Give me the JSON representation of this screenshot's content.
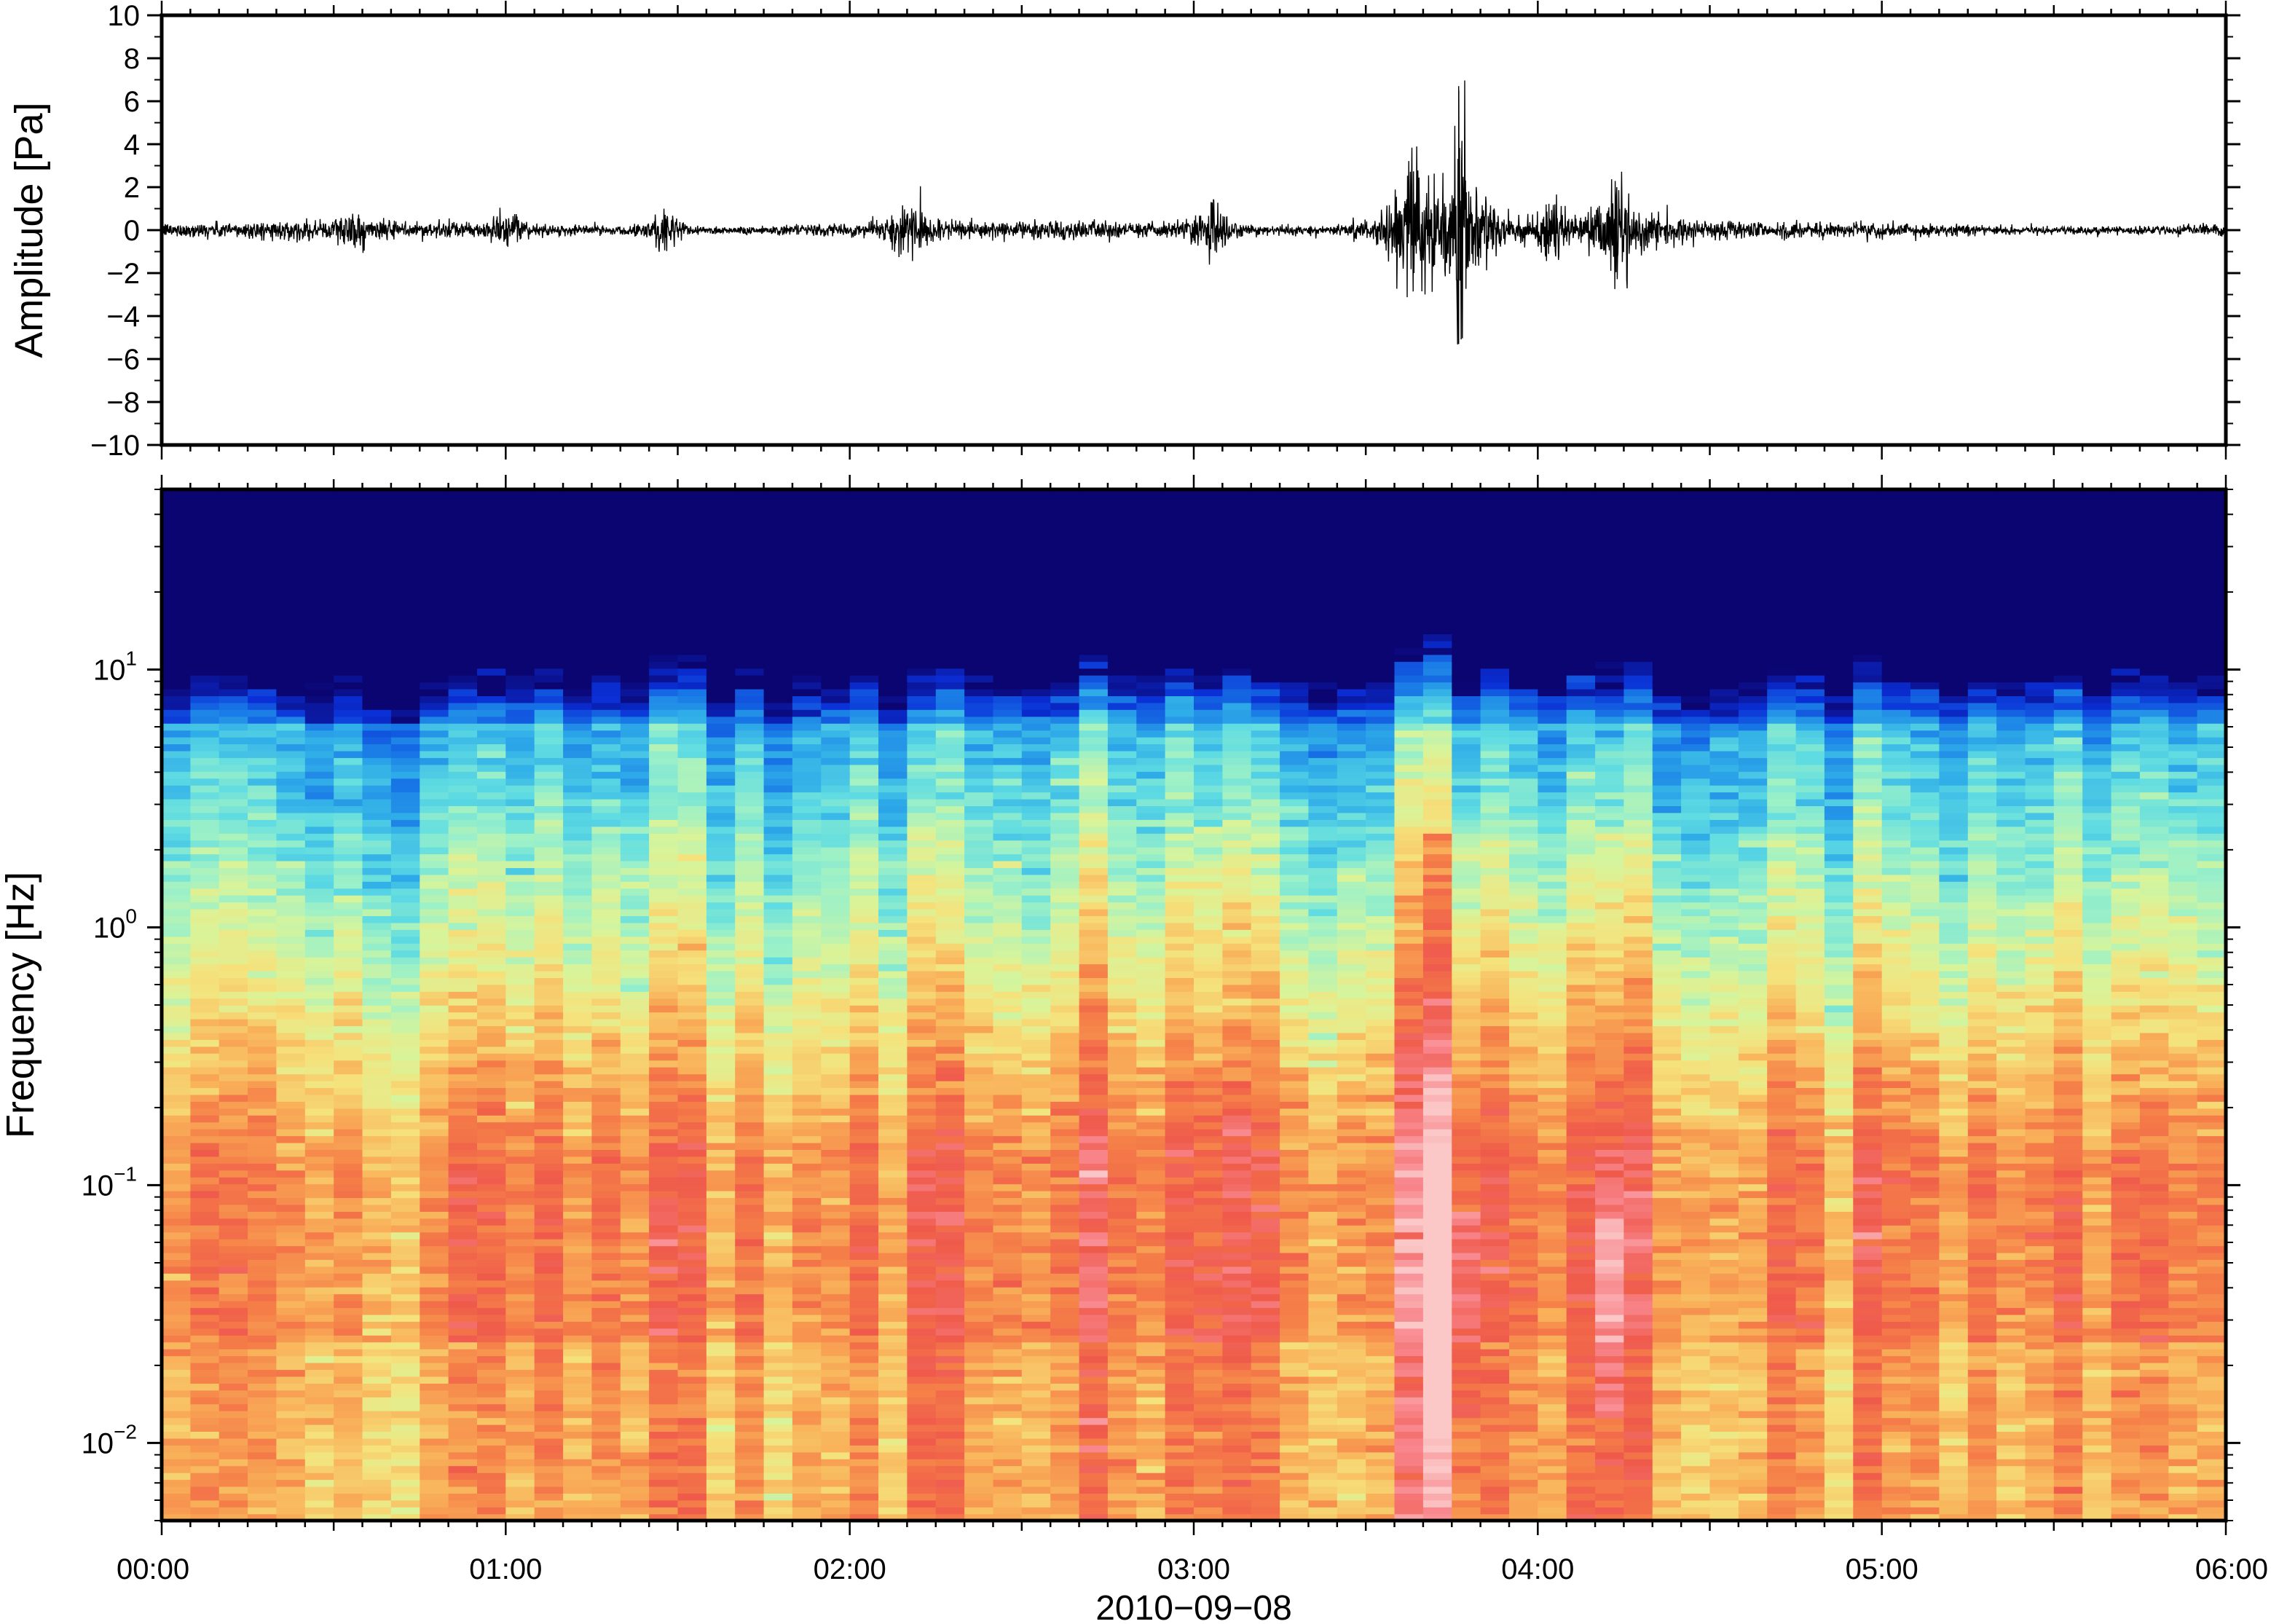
{
  "chart_data": [
    {
      "type": "line",
      "panel": "waveform",
      "title": "",
      "xlabel": "",
      "ylabel": "Amplitude [Pa]",
      "xlim_hours": [
        0,
        6
      ],
      "ylim": [
        -10,
        10
      ],
      "yticks": [
        10,
        8,
        6,
        4,
        2,
        0,
        -2,
        -4,
        -6,
        -8,
        -10
      ],
      "ytick_labels": [
        "10",
        "8",
        "6",
        "4",
        "2",
        "0",
        "−2",
        "−4",
        "−6",
        "−8",
        "−10"
      ],
      "background_noise_amplitude": 0.15,
      "bursts": [
        {
          "t": 0.55,
          "amp": 0.5
        },
        {
          "t": 1.0,
          "amp": 0.5
        },
        {
          "t": 1.46,
          "amp": 1.0
        },
        {
          "t": 2.17,
          "amp": 1.3
        },
        {
          "t": 3.05,
          "amp": 1.3
        },
        {
          "t": 3.64,
          "amp": 2.5
        },
        {
          "t": 3.77,
          "amp": 6.5
        },
        {
          "t": 4.05,
          "amp": 1.2
        },
        {
          "t": 4.23,
          "amp": 2.0
        }
      ],
      "series": [
        {
          "color": "#000000"
        }
      ]
    },
    {
      "type": "heatmap",
      "panel": "spectrogram",
      "title": "",
      "xlabel": "2010−09−08",
      "ylabel": "Frequency [Hz]",
      "xlim_hours": [
        0,
        6
      ],
      "ylim_hz": [
        0.005,
        50
      ],
      "yscale": "log",
      "yticks": [
        {
          "value": 10,
          "base": "10",
          "exp": "1"
        },
        {
          "value": 1,
          "base": "10",
          "exp": "0"
        },
        {
          "value": 0.1,
          "base": "10",
          "exp": "−1"
        },
        {
          "value": 0.01,
          "base": "10",
          "exp": "−2"
        }
      ],
      "xticks": [
        {
          "value": 0,
          "label": "00:00"
        },
        {
          "value": 1,
          "label": "01:00"
        },
        {
          "value": 2,
          "label": "02:00"
        },
        {
          "value": 3,
          "label": "03:00"
        },
        {
          "value": 4,
          "label": "04:00"
        },
        {
          "value": 5,
          "label": "05:00"
        },
        {
          "value": 6,
          "label": "06:00"
        }
      ],
      "colormap": [
        "#0b0572",
        "#0a2fd6",
        "#1877e6",
        "#30aee8",
        "#5fdce2",
        "#9ef1c6",
        "#d8f49a",
        "#f5e27c",
        "#f9b35a",
        "#f57f48",
        "#ef5a4b",
        "#f8848a",
        "#fbc7c7"
      ],
      "energetic_periods_hours": [
        {
          "t": 0.9,
          "strength": 0.3
        },
        {
          "t": 1.3,
          "strength": 0.3
        },
        {
          "t": 2.2,
          "strength": 0.5
        },
        {
          "t": 3.1,
          "strength": 0.55
        },
        {
          "t": 3.72,
          "strength": 1.0
        },
        {
          "t": 4.2,
          "strength": 0.85
        }
      ]
    }
  ]
}
